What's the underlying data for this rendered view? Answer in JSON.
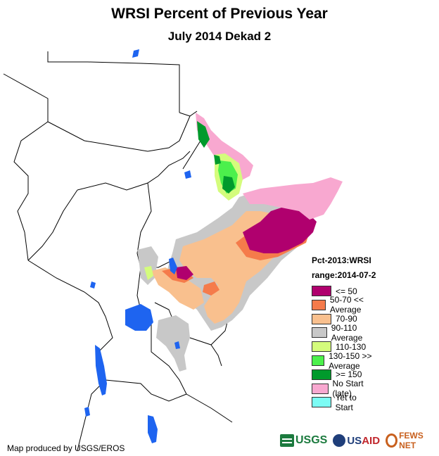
{
  "title": "WRSI Percent of Previous Year",
  "subtitle": "July 2014 Dekad 2",
  "legend": {
    "title_line1": "Pct-2013:WRSI",
    "title_line2": "range:2014-07-2",
    "items": [
      {
        "label": "<= 50",
        "color": "#b0006e"
      },
      {
        "label": "50-70 << Average",
        "color": "#f57b4b"
      },
      {
        "label": "70-90",
        "color": "#f9c08e"
      },
      {
        "label": "90-110 Average",
        "color": "#c8c8c8"
      },
      {
        "label": "110-130",
        "color": "#d4fc7c"
      },
      {
        "label": "130-150 >> Average",
        "color": "#4cf04c"
      },
      {
        "label": ">= 150",
        "color": "#009a2c"
      },
      {
        "label": "No Start (late)",
        "color": "#f8a8d0"
      },
      {
        "label": "Yet to Start",
        "color": "#7cfcf4"
      }
    ]
  },
  "credit": "Map produced by USGS/EROS",
  "logos": {
    "usgs": "USGS",
    "usaid_a": "US",
    "usaid_b": "AID",
    "fews": "FEWS NET"
  },
  "colors": {
    "water": "#1e64f0",
    "border": "#000000"
  }
}
